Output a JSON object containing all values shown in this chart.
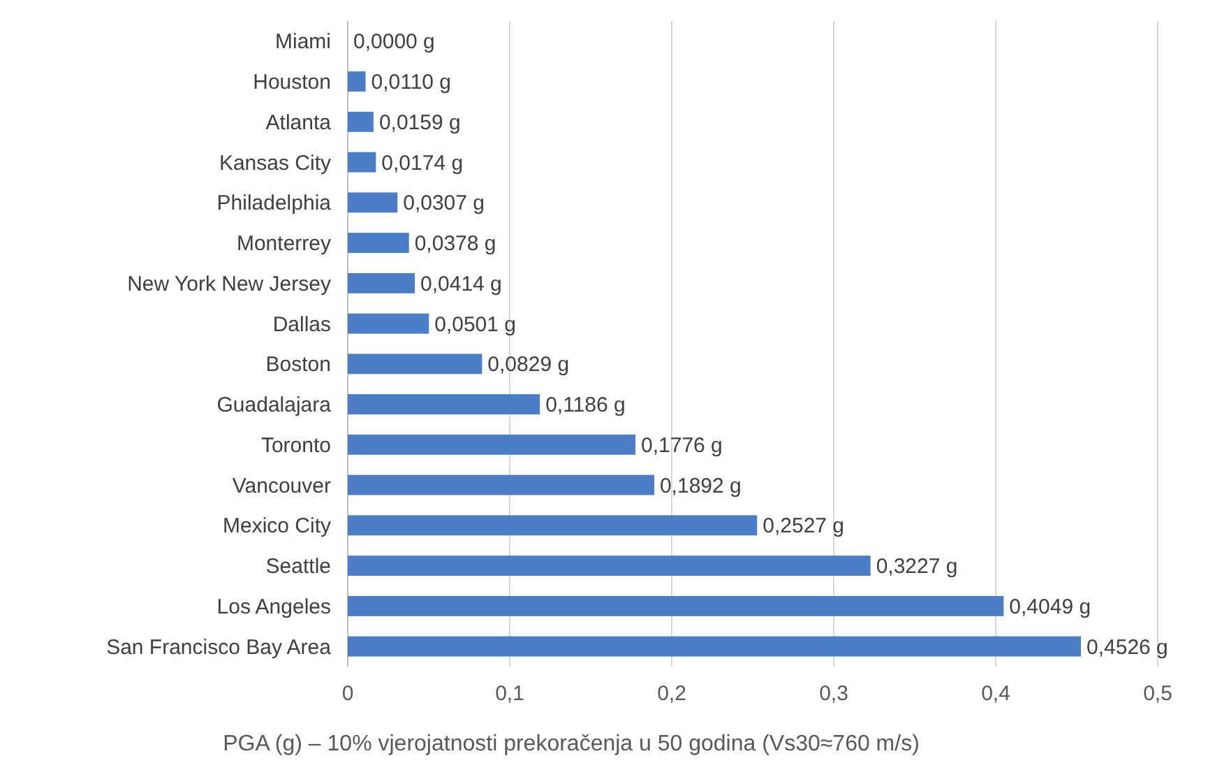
{
  "chart_data": {
    "type": "bar",
    "orientation": "horizontal",
    "xlabel": "PGA (g) – 10% vjerojatnosti prekoračenja u 50 godina (Vs30≈760 m/s)",
    "categories": [
      "Miami",
      "Houston",
      "Atlanta",
      "Kansas City",
      "Philadelphia",
      "Monterrey",
      "New York New Jersey",
      "Dallas",
      "Boston",
      "Guadalajara",
      "Toronto",
      "Vancouver",
      "Mexico City",
      "Seattle",
      "Los Angeles",
      "San Francisco Bay Area"
    ],
    "values": [
      0,
      0.011,
      0.0159,
      0.0174,
      0.0307,
      0.0378,
      0.0414,
      0.0501,
      0.0829,
      0.1186,
      0.1776,
      0.1892,
      0.2527,
      0.3227,
      0.4049,
      0.4526
    ],
    "value_labels": [
      "0,0000 g",
      "0,0110 g",
      "0,0159 g",
      "0,0174 g",
      "0,0307 g",
      "0,0378 g",
      "0,0414 g",
      "0,0501 g",
      "0,0829 g",
      "0,1186 g",
      "0,1776 g",
      "0,1892 g",
      "0,2527 g",
      "0,3227 g",
      "0,4049 g",
      "0,4526 g"
    ],
    "color": "#4a7ec6",
    "xlim": [
      0,
      0.5
    ],
    "xticks": [
      0,
      {
        "value": 0.1,
        "label": "0,1"
      },
      {
        "value": 0.2,
        "label": "0,2"
      },
      {
        "value": 0.3,
        "label": "0,3"
      },
      {
        "value": 0.4,
        "label": "0,4"
      },
      {
        "value": 0.5,
        "label": "0,5"
      }
    ],
    "grid": "x"
  }
}
